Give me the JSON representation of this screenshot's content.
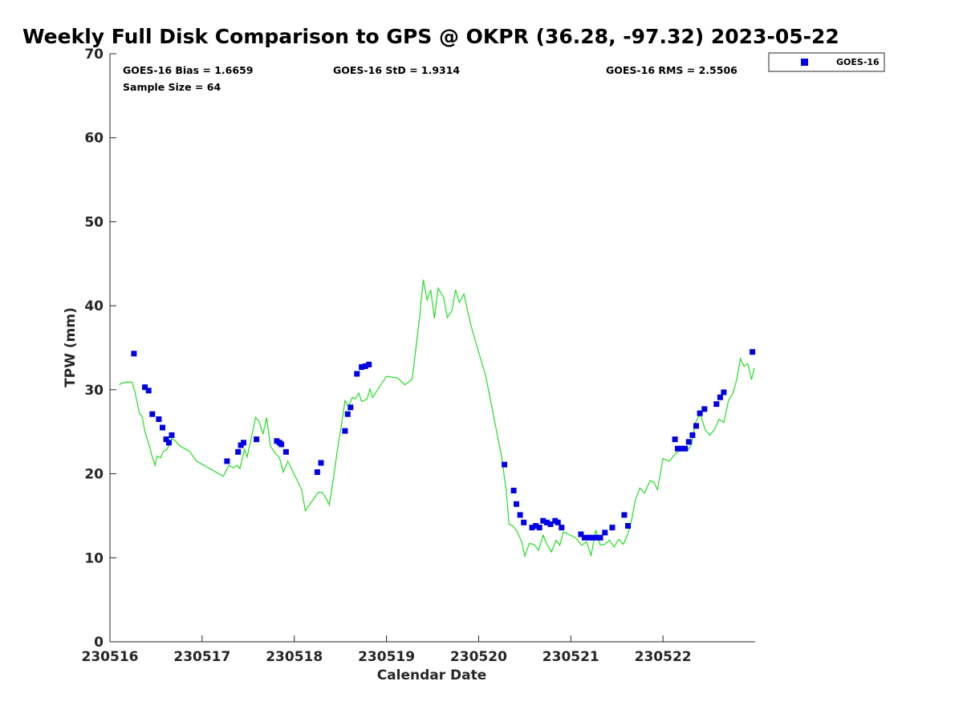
{
  "chart_data": {
    "type": "scatter",
    "title": "Weekly Full Disk Comparison to GPS @ OKPR (36.28, -97.32) 2023-05-22",
    "xlabel": "Calendar Date",
    "ylabel": "TPW (mm)",
    "xlim": [
      230516,
      230523
    ],
    "ylim": [
      0,
      70
    ],
    "x_ticks": [
      230516,
      230517,
      230518,
      230519,
      230520,
      230521,
      230522
    ],
    "y_ticks": [
      0,
      10,
      20,
      30,
      40,
      50,
      60,
      70
    ],
    "stats": {
      "bias": "GOES-16 Bias = 1.6659",
      "std": "GOES-16 StD = 1.9314",
      "rms": "GOES-16 RMS = 2.5506",
      "sample": "Sample Size = 64"
    },
    "legend": {
      "position": "top-right",
      "entries": [
        "GOES-16"
      ]
    },
    "colors": {
      "goes16": "#0000e6",
      "gps": "#22dd22"
    },
    "series": [
      {
        "name": "GOES-16",
        "marker": "square",
        "x": [
          230516.26,
          230516.38,
          230516.42,
          230516.46,
          230516.53,
          230516.57,
          230516.61,
          230516.64,
          230516.67,
          230517.27,
          230517.39,
          230517.42,
          230517.45,
          230517.59,
          230517.81,
          230517.84,
          230517.86,
          230517.91,
          230518.25,
          230518.29,
          230518.55,
          230518.58,
          230518.61,
          230518.68,
          230518.73,
          230518.77,
          230518.81,
          230520.28,
          230520.38,
          230520.41,
          230520.45,
          230520.49,
          230520.58,
          230520.62,
          230520.66,
          230520.7,
          230520.74,
          230520.78,
          230520.83,
          230520.86,
          230520.9,
          230521.11,
          230521.15,
          230521.2,
          230521.24,
          230521.28,
          230521.32,
          230521.37,
          230521.45,
          230521.58,
          230521.62,
          230522.13,
          230522.16,
          230522.2,
          230522.24,
          230522.28,
          230522.32,
          230522.36,
          230522.4,
          230522.45,
          230522.58,
          230522.62,
          230522.66,
          230522.97
        ],
        "y": [
          34.3,
          30.3,
          29.9,
          27.1,
          26.5,
          25.5,
          24.1,
          23.7,
          24.6,
          21.5,
          22.6,
          23.4,
          23.7,
          24.1,
          23.9,
          23.7,
          23.5,
          22.6,
          20.2,
          21.3,
          25.1,
          27.1,
          27.9,
          31.9,
          32.7,
          32.8,
          33.0,
          21.1,
          18.0,
          16.4,
          15.1,
          14.2,
          13.6,
          13.8,
          13.6,
          14.4,
          14.2,
          14.0,
          14.4,
          14.2,
          13.6,
          12.8,
          12.4,
          12.4,
          12.4,
          12.4,
          12.4,
          13.0,
          13.6,
          15.1,
          13.8,
          24.1,
          23.0,
          23.0,
          23.0,
          23.8,
          24.6,
          25.7,
          27.2,
          27.7,
          28.3,
          29.1,
          29.7,
          34.5
        ]
      },
      {
        "name": "GPS",
        "line": true,
        "x": [
          230516.1,
          230516.13,
          230516.18,
          230516.24,
          230516.27,
          230516.32,
          230516.35,
          230516.38,
          230516.42,
          230516.46,
          230516.49,
          230516.51,
          230516.55,
          230516.58,
          230516.62,
          230516.67,
          230516.71,
          230516.76,
          230516.81,
          230516.86,
          230516.94,
          230517.23,
          230517.29,
          230517.34,
          230517.38,
          230517.41,
          230517.46,
          230517.49,
          230517.55,
          230517.58,
          230517.62,
          230517.66,
          230517.7,
          230517.74,
          230517.79,
          230517.84,
          230517.88,
          230517.93,
          230518.08,
          230518.12,
          230518.26,
          230518.3,
          230518.35,
          230518.38,
          230518.43,
          230518.47,
          230518.52,
          230518.55,
          230518.59,
          230518.63,
          230518.66,
          230518.7,
          230518.73,
          230518.79,
          230518.82,
          230518.85,
          230519.0,
          230519.12,
          230519.2,
          230519.25,
          230519.28,
          230519.32,
          230519.36,
          230519.4,
          230519.44,
          230519.48,
          230519.52,
          230519.56,
          230519.62,
          230519.66,
          230519.71,
          230519.75,
          230519.79,
          230519.84,
          230519.88,
          230519.93,
          230520.08,
          230520.25,
          230520.3,
          230520.33,
          230520.37,
          230520.42,
          230520.47,
          230520.5,
          230520.55,
          230520.6,
          230520.65,
          230520.7,
          230520.74,
          230520.79,
          230520.84,
          230520.88,
          230520.92,
          230521.05,
          230521.12,
          230521.17,
          230521.22,
          230521.27,
          230521.32,
          230521.37,
          230521.42,
          230521.47,
          230521.52,
          230521.57,
          230521.62,
          230521.66,
          230521.7,
          230521.75,
          230521.8,
          230521.86,
          230521.9,
          230521.94,
          230522.0,
          230522.07,
          230522.12,
          230522.17,
          230522.22,
          230522.27,
          230522.31,
          230522.35,
          230522.4,
          230522.46,
          230522.51,
          230522.56,
          230522.61,
          230522.66,
          230522.71,
          230522.76,
          230522.8,
          230522.84,
          230522.88,
          230522.92,
          230522.96,
          230522.99
        ],
        "y": [
          30.6,
          30.8,
          30.9,
          30.9,
          29.8,
          27.2,
          26.8,
          25.0,
          23.6,
          22.0,
          21.0,
          22.1,
          21.9,
          22.7,
          22.9,
          24.2,
          23.9,
          23.3,
          23.0,
          22.7,
          21.5,
          19.7,
          21.0,
          20.7,
          21.0,
          20.6,
          22.9,
          22.0,
          25.1,
          26.7,
          26.2,
          24.7,
          26.7,
          23.3,
          22.5,
          21.9,
          20.2,
          21.5,
          18.1,
          15.6,
          17.8,
          17.8,
          17.0,
          16.3,
          19.9,
          23.0,
          26.4,
          28.7,
          28.0,
          29.1,
          28.9,
          29.6,
          28.6,
          28.9,
          30.1,
          29.1,
          31.6,
          31.4,
          30.6,
          31.0,
          31.3,
          35.0,
          38.7,
          43.1,
          40.7,
          41.9,
          38.5,
          42.1,
          41.0,
          38.6,
          39.4,
          41.9,
          40.4,
          41.4,
          39.4,
          37.1,
          31.5,
          22.0,
          17.9,
          14.0,
          13.8,
          13.1,
          11.8,
          10.2,
          11.7,
          11.6,
          10.9,
          12.7,
          11.6,
          10.7,
          12.1,
          11.5,
          13.1,
          12.4,
          11.5,
          11.9,
          10.3,
          13.3,
          11.5,
          11.6,
          12.1,
          11.3,
          12.2,
          11.6,
          12.9,
          14.5,
          16.9,
          18.3,
          17.7,
          19.2,
          19.0,
          18.1,
          21.8,
          21.5,
          22.2,
          22.7,
          23.2,
          22.8,
          23.5,
          26.0,
          27.2,
          25.2,
          24.6,
          25.3,
          26.5,
          26.1,
          28.7,
          29.6,
          31.2,
          33.7,
          32.8,
          33.1,
          31.2,
          32.6
        ]
      }
    ]
  }
}
